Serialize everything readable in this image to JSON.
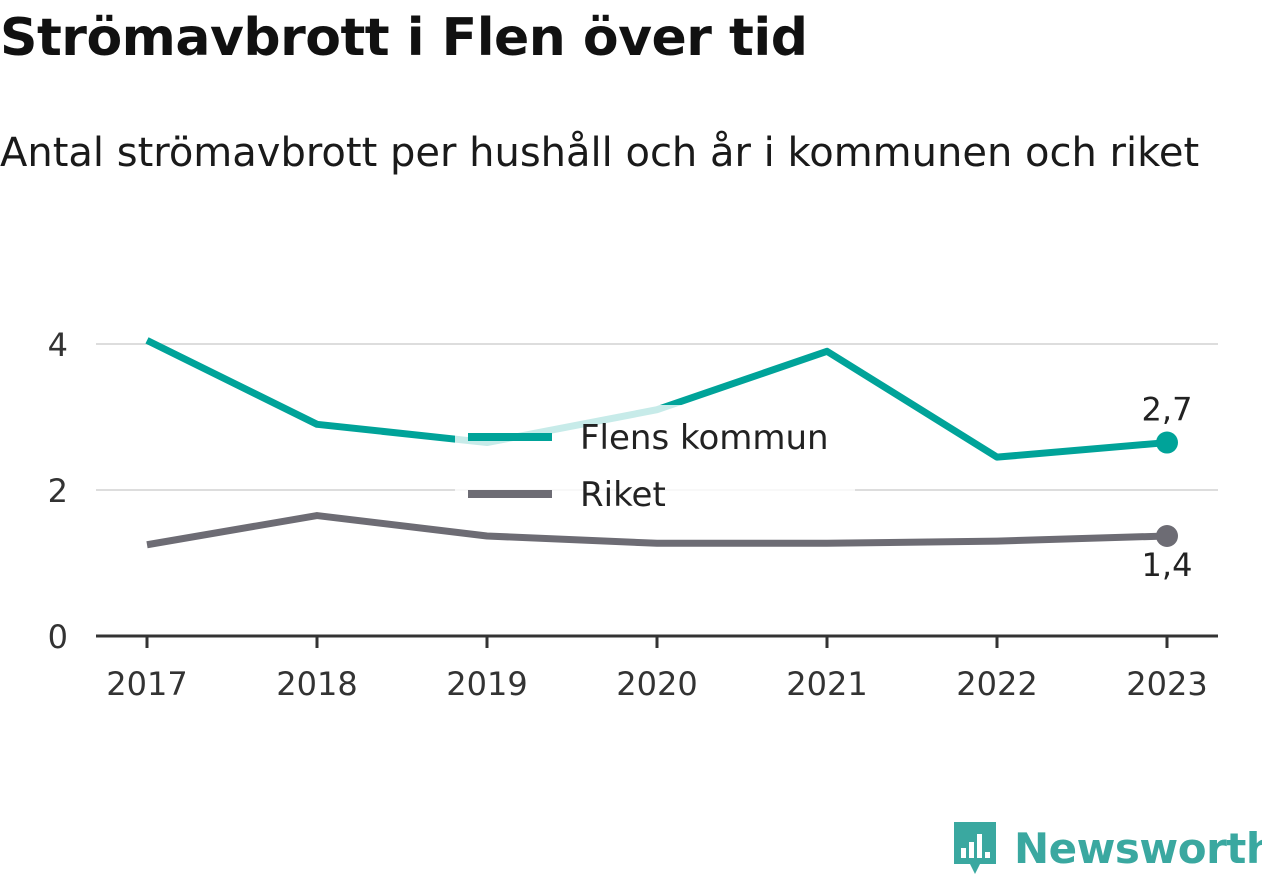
{
  "header": {
    "title": "Strömavbrott i Flen över tid",
    "subtitle": "Antal strömavbrott per hushåll och år i kommunen och riket"
  },
  "brand": {
    "name": "Newsworthy",
    "icon": "newsworthy-logo-icon",
    "color": "#3aa8a0"
  },
  "chart_data": {
    "type": "line",
    "title": "Strömavbrott i Flen över tid",
    "subtitle": "Antal strömavbrott per hushåll och år i kommunen och riket",
    "x": [
      "2017",
      "2018",
      "2019",
      "2020",
      "2021",
      "2022",
      "2023"
    ],
    "ylim": [
      0,
      4.2
    ],
    "yticks": [
      0,
      2,
      4
    ],
    "grid": true,
    "legend": "center",
    "series": [
      {
        "name": "Flens kommun",
        "color": "#00a399",
        "values": [
          4.05,
          2.9,
          2.65,
          3.1,
          3.9,
          2.45,
          2.65
        ],
        "end_label": "2,7"
      },
      {
        "name": "Riket",
        "color": "#6d6c74",
        "values": [
          1.25,
          1.65,
          1.37,
          1.27,
          1.27,
          1.3,
          1.37
        ],
        "end_label": "1,4"
      }
    ]
  }
}
